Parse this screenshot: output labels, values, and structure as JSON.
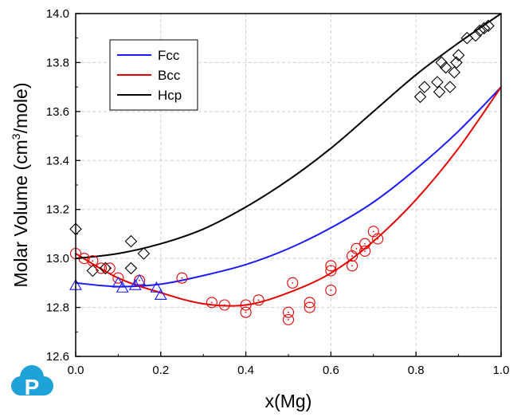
{
  "chart_data": {
    "type": "scatter",
    "xlabel": "x(Mg)",
    "ylabel_prefix": "Molar Volume (cm",
    "ylabel_sup": "3",
    "ylabel_suffix": "/mole)",
    "xlim": [
      0.0,
      1.0
    ],
    "ylim": [
      12.6,
      14.0
    ],
    "xticks": [
      0.0,
      0.2,
      0.4,
      0.6,
      0.8,
      1.0
    ],
    "xtick_labels": [
      "0.0",
      "0.2",
      "0.4",
      "0.6",
      "0.8",
      "1.0"
    ],
    "yticks": [
      12.6,
      12.8,
      13.0,
      13.2,
      13.4,
      13.6,
      13.8,
      14.0
    ],
    "ytick_labels": [
      "12.6",
      "12.8",
      "13.0",
      "13.2",
      "13.4",
      "13.6",
      "13.8",
      "14.0"
    ],
    "grid": true,
    "legend_position": "top-left",
    "lines": [
      {
        "name": "Fcc",
        "color": "#1a1aff",
        "x": [
          0.0,
          0.1,
          0.2,
          0.3,
          0.4,
          0.5,
          0.6,
          0.7,
          0.8,
          0.9,
          1.0
        ],
        "y": [
          12.9,
          12.885,
          12.895,
          12.93,
          12.975,
          13.04,
          13.125,
          13.23,
          13.365,
          13.52,
          13.7
        ]
      },
      {
        "name": "Bcc",
        "color": "#e60000",
        "x": [
          0.0,
          0.1,
          0.2,
          0.3,
          0.4,
          0.5,
          0.6,
          0.7,
          0.8,
          0.9,
          1.0
        ],
        "y": [
          13.02,
          12.92,
          12.86,
          12.815,
          12.81,
          12.86,
          12.94,
          13.07,
          13.24,
          13.45,
          13.7
        ]
      },
      {
        "name": "Hcp",
        "color": "#000000",
        "x": [
          0.0,
          0.1,
          0.2,
          0.3,
          0.4,
          0.5,
          0.6,
          0.7,
          0.8,
          0.9,
          1.0
        ],
        "y": [
          13.0,
          13.02,
          13.06,
          13.12,
          13.21,
          13.32,
          13.45,
          13.6,
          13.75,
          13.88,
          14.0
        ]
      }
    ],
    "markers": [
      {
        "series": "Hcp",
        "shape": "diamond",
        "color": "#000000",
        "x": [
          0.0,
          0.04,
          0.07,
          0.13,
          0.13,
          0.16,
          0.81,
          0.82,
          0.85,
          0.855,
          0.86,
          0.87,
          0.88,
          0.89,
          0.895,
          0.9,
          0.92,
          0.94,
          0.95,
          0.96,
          0.97
        ],
        "y": [
          13.12,
          12.95,
          12.96,
          13.07,
          12.96,
          13.02,
          13.66,
          13.7,
          13.72,
          13.68,
          13.8,
          13.78,
          13.7,
          13.76,
          13.8,
          13.83,
          13.9,
          13.91,
          13.93,
          13.94,
          13.95
        ]
      },
      {
        "series": "Bcc",
        "shape": "circle",
        "color": "#e60000",
        "x": [
          0.0,
          0.02,
          0.04,
          0.06,
          0.08,
          0.1,
          0.15,
          0.25,
          0.32,
          0.35,
          0.4,
          0.4,
          0.43,
          0.5,
          0.5,
          0.51,
          0.55,
          0.55,
          0.6,
          0.6,
          0.6,
          0.65,
          0.65,
          0.66,
          0.68,
          0.68,
          0.7,
          0.71
        ],
        "y": [
          13.02,
          13.0,
          12.99,
          12.96,
          12.96,
          12.92,
          12.91,
          12.92,
          12.82,
          12.81,
          12.81,
          12.78,
          12.83,
          12.78,
          12.75,
          12.9,
          12.8,
          12.82,
          12.87,
          12.95,
          12.97,
          12.97,
          13.01,
          13.04,
          13.03,
          13.06,
          13.11,
          13.08
        ]
      },
      {
        "series": "Fcc",
        "shape": "triangle",
        "color": "#1a1aff",
        "x": [
          0.0,
          0.1,
          0.11,
          0.14,
          0.15,
          0.19,
          0.2
        ],
        "y": [
          12.89,
          12.9,
          12.88,
          12.89,
          12.91,
          12.88,
          12.85
        ]
      }
    ]
  },
  "logo": {
    "letter": "P",
    "color": "#1ea2d8"
  }
}
